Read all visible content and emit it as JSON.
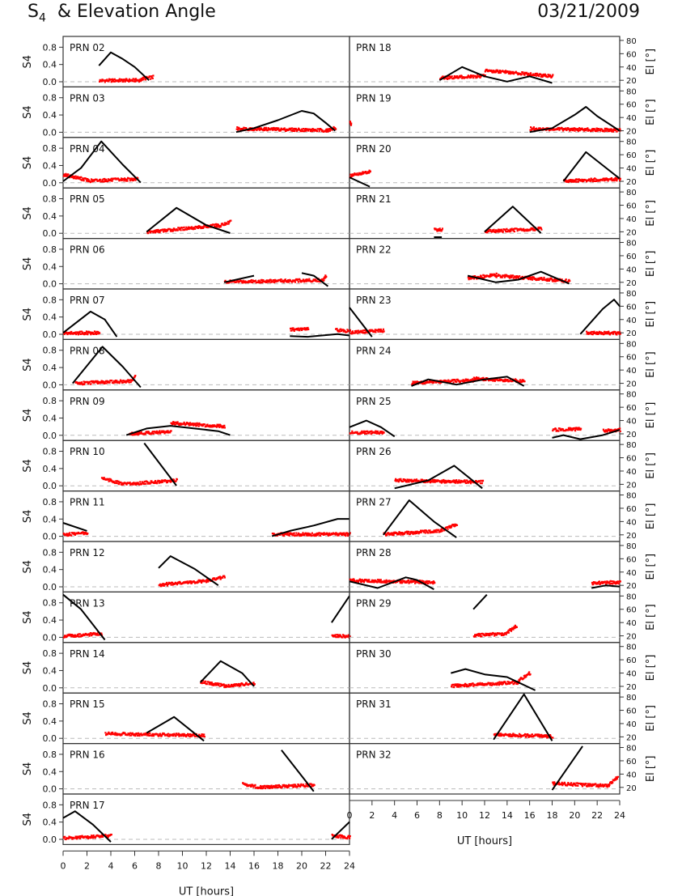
{
  "header": {
    "title_main": "S",
    "title_sub": "4",
    "title_rest": "  & Elevation Angle",
    "date": "03/21/2009"
  },
  "chart_data": {
    "type": "line",
    "x_range": [
      0,
      24
    ],
    "x_ticks": [
      0,
      2,
      4,
      6,
      8,
      10,
      12,
      14,
      16,
      18,
      20,
      22,
      24
    ],
    "xlabel": "UT [hours]",
    "left_axis": {
      "label": "S4",
      "ticks": [
        0.0,
        0.4,
        0.8
      ],
      "tick_labels": [
        "0.0",
        "0.4",
        "0.8"
      ],
      "range": [
        -0.12,
        1.05
      ]
    },
    "right_axis": {
      "label": "El [°]",
      "ticks": [
        20,
        40,
        60,
        80
      ],
      "range": [
        10,
        86
      ]
    },
    "series_colors": {
      "s4": "#ff0000",
      "elevation": "#000000"
    },
    "reference_line_color": "#bbbbbb",
    "panels": [
      {
        "label": "PRN 02",
        "col": 0,
        "row": 0,
        "el": [
          [
            3,
            42
          ],
          [
            4,
            62
          ],
          [
            5,
            52
          ],
          [
            6,
            40
          ],
          [
            7.2,
            20
          ]
        ],
        "s4": [
          [
            3,
            0.04,
            6.5,
            0.05
          ],
          [
            6.5,
            0.08,
            7.5,
            0.12
          ]
        ]
      },
      {
        "label": "PRN 03",
        "col": 0,
        "row": 1,
        "el": [
          [
            14.5,
            18
          ],
          [
            16,
            24
          ],
          [
            18,
            36
          ],
          [
            20,
            50
          ],
          [
            21,
            46
          ],
          [
            22,
            32
          ],
          [
            22.8,
            20
          ]
        ],
        "s4": [
          [
            14.5,
            0.1,
            22,
            0.06
          ],
          [
            22,
            0.05,
            22.8,
            0.12
          ]
        ]
      },
      {
        "label": "PRN 04",
        "col": 0,
        "row": 2,
        "el": [
          [
            0,
            20
          ],
          [
            1.5,
            40
          ],
          [
            3.2,
            80
          ],
          [
            5,
            45
          ],
          [
            6.5,
            18
          ]
        ],
        "s4": [
          [
            0,
            0.2,
            2,
            0.08
          ],
          [
            2,
            0.06,
            6.2,
            0.1
          ]
        ]
      },
      {
        "label": "PRN 05",
        "col": 0,
        "row": 3,
        "el": [
          [
            7,
            20
          ],
          [
            9.5,
            56
          ],
          [
            12,
            30
          ],
          [
            14,
            18
          ]
        ],
        "s4": [
          [
            7,
            0.04,
            13,
            0.2
          ],
          [
            13,
            0.18,
            14,
            0.28
          ]
        ]
      },
      {
        "label": "PRN 06",
        "col": 0,
        "row": 4,
        "el": [
          [
            13.5,
            20
          ],
          [
            16,
            30
          ],
          [
            20,
            34
          ],
          [
            21,
            30
          ],
          [
            22.2,
            14
          ]
        ],
        "s4": [
          [
            13.5,
            0.06,
            21.8,
            0.1
          ],
          [
            21.8,
            0.12,
            22,
            0.2
          ]
        ]
      },
      {
        "label": "PRN 07",
        "col": 0,
        "row": 5,
        "el": [
          [
            0,
            20
          ],
          [
            2.3,
            52
          ],
          [
            3.5,
            40
          ],
          [
            4.5,
            14
          ],
          [
            19,
            15
          ],
          [
            20.5,
            14
          ],
          [
            23,
            18
          ],
          [
            24,
            16
          ]
        ],
        "s4": [
          [
            0,
            0.04,
            3,
            0.05
          ],
          [
            19,
            0.12,
            20.5,
            0.14
          ],
          [
            22.8,
            0.12,
            24,
            0.08
          ]
        ]
      },
      {
        "label": "PRN 08",
        "col": 0,
        "row": 6,
        "el": [
          [
            0.8,
            20
          ],
          [
            3.3,
            75
          ],
          [
            5,
            45
          ],
          [
            6.5,
            14
          ]
        ],
        "s4": [
          [
            1,
            0.05,
            5.8,
            0.1
          ],
          [
            5.8,
            0.12,
            6,
            0.2
          ]
        ]
      },
      {
        "label": "PRN 09",
        "col": 0,
        "row": 7,
        "el": [
          [
            5.3,
            18
          ],
          [
            7,
            28
          ],
          [
            9,
            32
          ],
          [
            11,
            28
          ],
          [
            13,
            24
          ],
          [
            14,
            18
          ]
        ],
        "s4": [
          [
            5.5,
            0.05,
            9,
            0.1
          ],
          [
            9,
            0.3,
            13.5,
            0.22
          ]
        ]
      },
      {
        "label": "PRN 10",
        "col": 0,
        "row": 8,
        "el": [
          [
            3.2,
            18
          ],
          [
            6.8,
            82
          ],
          [
            9.5,
            18
          ]
        ],
        "s4": [
          [
            3.2,
            0.2,
            5,
            0.05
          ],
          [
            5,
            0.05,
            9.5,
            0.14
          ]
        ]
      },
      {
        "label": "PRN 11",
        "col": 0,
        "row": 9,
        "el": [
          [
            0,
            38
          ],
          [
            2,
            26
          ],
          [
            17.5,
            18
          ],
          [
            19,
            26
          ],
          [
            21,
            34
          ],
          [
            23,
            44
          ],
          [
            24,
            44
          ]
        ],
        "s4": [
          [
            0,
            0.05,
            2,
            0.1
          ],
          [
            17.5,
            0.06,
            24,
            0.06
          ]
        ]
      },
      {
        "label": "PRN 12",
        "col": 0,
        "row": 10,
        "el": [
          [
            8,
            46
          ],
          [
            9,
            64
          ],
          [
            11,
            45
          ],
          [
            13,
            20
          ]
        ],
        "s4": [
          [
            8,
            0.06,
            12,
            0.15
          ],
          [
            12,
            0.16,
            13.5,
            0.24
          ]
        ]
      },
      {
        "label": "PRN 13",
        "col": 0,
        "row": 11,
        "el": [
          [
            0,
            82
          ],
          [
            1.5,
            60
          ],
          [
            3.5,
            14
          ],
          [
            22.5,
            40
          ],
          [
            24,
            80
          ]
        ],
        "s4": [
          [
            0,
            0.04,
            3.2,
            0.1
          ],
          [
            22.5,
            0.05,
            24,
            0.04
          ]
        ]
      },
      {
        "label": "PRN 14",
        "col": 0,
        "row": 12,
        "el": [
          [
            11.5,
            26
          ],
          [
            13.2,
            58
          ],
          [
            15,
            40
          ],
          [
            16,
            20
          ]
        ],
        "s4": [
          [
            11.5,
            0.16,
            13.5,
            0.06
          ],
          [
            13.5,
            0.06,
            16,
            0.12
          ]
        ]
      },
      {
        "label": "PRN 15",
        "col": 0,
        "row": 13,
        "el": [
          [
            3.5,
            14
          ],
          [
            7,
            26
          ],
          [
            9.3,
            50
          ],
          [
            11.8,
            14
          ]
        ],
        "s4": [
          [
            3.5,
            0.12,
            11.8,
            0.08
          ]
        ]
      },
      {
        "label": "PRN 16",
        "col": 0,
        "row": 14,
        "el": [
          [
            15,
            20
          ],
          [
            18.3,
            76
          ],
          [
            21,
            14
          ]
        ],
        "s4": [
          [
            15,
            0.12,
            16.5,
            0.05
          ],
          [
            16.5,
            0.05,
            21,
            0.1
          ]
        ]
      },
      {
        "label": "PRN 17",
        "col": 0,
        "row": 15,
        "el": [
          [
            0,
            50
          ],
          [
            1,
            60
          ],
          [
            2.5,
            40
          ],
          [
            4,
            14
          ],
          [
            22.5,
            18
          ],
          [
            24,
            44
          ]
        ],
        "s4": [
          [
            0,
            0.04,
            4,
            0.1
          ],
          [
            22.5,
            0.1,
            24,
            0.06
          ]
        ]
      },
      {
        "label": "PRN 18",
        "col": 1,
        "row": 0,
        "el": [
          [
            8,
            20
          ],
          [
            10,
            40
          ],
          [
            12,
            26
          ],
          [
            14,
            18
          ],
          [
            16,
            26
          ],
          [
            18,
            16
          ]
        ],
        "s4": [
          [
            8,
            0.1,
            12,
            0.15
          ],
          [
            12,
            0.28,
            18,
            0.14
          ]
        ]
      },
      {
        "label": "PRN 19",
        "col": 1,
        "row": 1,
        "el": [
          [
            0,
            16
          ],
          [
            16,
            18
          ],
          [
            18,
            24
          ],
          [
            20,
            44
          ],
          [
            21,
            56
          ],
          [
            22,
            42
          ],
          [
            24,
            20
          ]
        ],
        "s4": [
          [
            0,
            0.28,
            0.1,
            0.2
          ],
          [
            16,
            0.1,
            24,
            0.06
          ]
        ]
      },
      {
        "label": "PRN 20",
        "col": 1,
        "row": 2,
        "el": [
          [
            0,
            26
          ],
          [
            1.8,
            12
          ],
          [
            19,
            20
          ],
          [
            21,
            64
          ],
          [
            24,
            24
          ]
        ],
        "s4": [
          [
            0,
            0.18,
            1.8,
            0.28
          ],
          [
            19,
            0.06,
            24,
            0.1
          ]
        ]
      },
      {
        "label": "PRN 21",
        "col": 1,
        "row": 3,
        "el": [
          [
            7.5,
            12
          ],
          [
            8.2,
            12
          ],
          [
            12,
            20
          ],
          [
            14.5,
            58
          ],
          [
            17,
            18
          ]
        ],
        "s4": [
          [
            7.5,
            0.1,
            8.2,
            0.1
          ],
          [
            12,
            0.06,
            17,
            0.12
          ]
        ]
      },
      {
        "label": "PRN 22",
        "col": 1,
        "row": 4,
        "el": [
          [
            10.5,
            30
          ],
          [
            13,
            20
          ],
          [
            15,
            24
          ],
          [
            17,
            36
          ],
          [
            19.5,
            18
          ]
        ],
        "s4": [
          [
            10.5,
            0.14,
            13,
            0.22
          ],
          [
            13,
            0.2,
            19.5,
            0.08
          ]
        ]
      },
      {
        "label": "PRN 23",
        "col": 1,
        "row": 5,
        "el": [
          [
            0,
            58
          ],
          [
            2,
            14
          ],
          [
            20.5,
            18
          ],
          [
            22.5,
            56
          ],
          [
            23.5,
            70
          ],
          [
            24,
            60
          ]
        ],
        "s4": [
          [
            0,
            0.06,
            3,
            0.1
          ],
          [
            21,
            0.05,
            24,
            0.04
          ]
        ]
      },
      {
        "label": "PRN 24",
        "col": 1,
        "row": 6,
        "el": [
          [
            5.5,
            16
          ],
          [
            7,
            26
          ],
          [
            9.5,
            18
          ],
          [
            12,
            26
          ],
          [
            14,
            30
          ],
          [
            15.5,
            16
          ]
        ],
        "s4": [
          [
            5.5,
            0.06,
            11,
            0.12
          ],
          [
            11,
            0.16,
            15.5,
            0.1
          ]
        ]
      },
      {
        "label": "PRN 25",
        "col": 1,
        "row": 7,
        "el": [
          [
            0,
            30
          ],
          [
            1.5,
            40
          ],
          [
            2.8,
            30
          ],
          [
            4,
            16
          ],
          [
            18,
            14
          ],
          [
            19,
            18
          ],
          [
            20.5,
            12
          ],
          [
            22.5,
            18
          ],
          [
            24,
            26
          ]
        ],
        "s4": [
          [
            0,
            0.08,
            3,
            0.08
          ],
          [
            18,
            0.14,
            20.5,
            0.16
          ],
          [
            22.5,
            0.12,
            24,
            0.14
          ]
        ]
      },
      {
        "label": "PRN 26",
        "col": 1,
        "row": 8,
        "el": [
          [
            4,
            14
          ],
          [
            7,
            26
          ],
          [
            9.3,
            48
          ],
          [
            11.8,
            14
          ]
        ],
        "s4": [
          [
            4,
            0.14,
            11.8,
            0.1
          ]
        ]
      },
      {
        "label": "PRN 27",
        "col": 1,
        "row": 9,
        "el": [
          [
            3,
            20
          ],
          [
            5.3,
            72
          ],
          [
            7.5,
            40
          ],
          [
            9.5,
            16
          ]
        ],
        "s4": [
          [
            3,
            0.06,
            8,
            0.14
          ],
          [
            8,
            0.14,
            9.5,
            0.3
          ]
        ]
      },
      {
        "label": "PRN 28",
        "col": 1,
        "row": 10,
        "el": [
          [
            0,
            26
          ],
          [
            2.5,
            16
          ],
          [
            5,
            32
          ],
          [
            6,
            28
          ],
          [
            7.5,
            14
          ],
          [
            21.5,
            16
          ],
          [
            22.8,
            20
          ],
          [
            24,
            18
          ]
        ],
        "s4": [
          [
            0,
            0.16,
            7.5,
            0.12
          ],
          [
            21.5,
            0.1,
            24,
            0.12
          ]
        ]
      },
      {
        "label": "PRN 29",
        "col": 1,
        "row": 11,
        "el": [
          [
            11,
            60
          ],
          [
            12.2,
            82
          ],
          [
            15.3,
            14
          ]
        ],
        "s4": [
          [
            11,
            0.06,
            14,
            0.1
          ],
          [
            14,
            0.14,
            14.8,
            0.28
          ]
        ]
      },
      {
        "label": "PRN 30",
        "col": 1,
        "row": 12,
        "el": [
          [
            9,
            40
          ],
          [
            10.3,
            46
          ],
          [
            12,
            38
          ],
          [
            14,
            34
          ],
          [
            16.5,
            14
          ]
        ],
        "s4": [
          [
            9,
            0.06,
            15,
            0.14
          ],
          [
            15,
            0.18,
            16,
            0.36
          ]
        ]
      },
      {
        "label": "PRN 31",
        "col": 1,
        "row": 13,
        "el": [
          [
            12.8,
            16
          ],
          [
            15.5,
            84
          ],
          [
            18,
            14
          ]
        ],
        "s4": [
          [
            12.8,
            0.1,
            18,
            0.06
          ]
        ]
      },
      {
        "label": "PRN 32",
        "col": 1,
        "row": 14,
        "el": [
          [
            18,
            16
          ],
          [
            20.7,
            82
          ],
          [
            24,
            14
          ]
        ],
        "s4": [
          [
            18,
            0.14,
            23,
            0.08
          ],
          [
            23,
            0.1,
            23.8,
            0.3
          ]
        ]
      }
    ]
  }
}
